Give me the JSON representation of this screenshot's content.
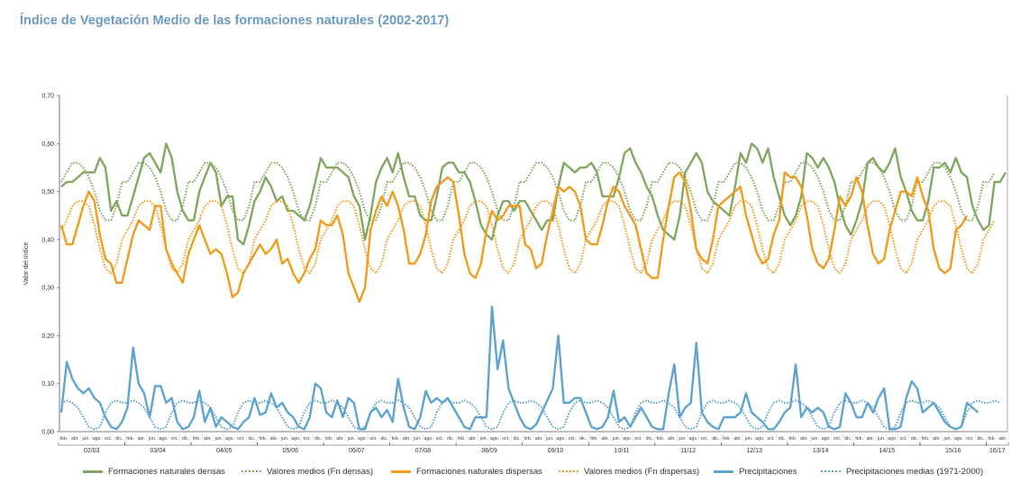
{
  "title": "Índice de Vegetación Medio de las formaciones naturales (2002-2017)",
  "chart_data": {
    "type": "line",
    "ylabel": "Valor del índice",
    "ylim": [
      0,
      0.7
    ],
    "y_ticks": [
      "0,00",
      "0,10",
      "0,20",
      "0,30",
      "0,40",
      "0,50",
      "0,60",
      "0,70"
    ],
    "month_labels": [
      "feb.",
      "abr.",
      "jun.",
      "ago.",
      "oct.",
      "dic."
    ],
    "seasons": [
      "02/03",
      "03/04",
      "04/05",
      "05/06",
      "06/07",
      "07/08",
      "08/09",
      "09/10",
      "10/11",
      "11/12",
      "12/13",
      "13/14",
      "14/15",
      "15/16",
      "16/17"
    ],
    "series": [
      {
        "name": "Formaciones naturales densas",
        "color": "#82a862",
        "style": "solid",
        "values": [
          0.51,
          0.52,
          0.52,
          0.53,
          0.54,
          0.54,
          0.54,
          0.57,
          0.55,
          0.46,
          0.48,
          0.45,
          0.45,
          0.49,
          0.53,
          0.57,
          0.58,
          0.56,
          0.54,
          0.6,
          0.57,
          0.5,
          0.46,
          0.44,
          0.44,
          0.5,
          0.53,
          0.56,
          0.54,
          0.47,
          0.49,
          0.49,
          0.4,
          0.39,
          0.43,
          0.48,
          0.5,
          0.53,
          0.51,
          0.48,
          0.49,
          0.46,
          0.46,
          0.45,
          0.44,
          0.47,
          0.52,
          0.57,
          0.55,
          0.55,
          0.55,
          0.54,
          0.53,
          0.49,
          0.47,
          0.4,
          0.45,
          0.52,
          0.55,
          0.57,
          0.54,
          0.58,
          0.53,
          0.49,
          0.49,
          0.45,
          0.44,
          0.44,
          0.49,
          0.55,
          0.56,
          0.56,
          0.54,
          0.54,
          0.52,
          0.48,
          0.43,
          0.41,
          0.4,
          0.45,
          0.48,
          0.48,
          0.46,
          0.48,
          0.48,
          0.46,
          0.44,
          0.42,
          0.44,
          0.44,
          0.51,
          0.56,
          0.55,
          0.54,
          0.55,
          0.55,
          0.56,
          0.54,
          0.49,
          0.49,
          0.49,
          0.53,
          0.58,
          0.59,
          0.56,
          0.54,
          0.51,
          0.49,
          0.45,
          0.42,
          0.41,
          0.4,
          0.45,
          0.54,
          0.56,
          0.58,
          0.56,
          0.5,
          0.48,
          0.47,
          0.46,
          0.45,
          0.51,
          0.58,
          0.56,
          0.6,
          0.59,
          0.56,
          0.59,
          0.53,
          0.49,
          0.45,
          0.43,
          0.45,
          0.49,
          0.58,
          0.57,
          0.55,
          0.57,
          0.55,
          0.52,
          0.47,
          0.43,
          0.41,
          0.44,
          0.48,
          0.56,
          0.57,
          0.55,
          0.54,
          0.56,
          0.59,
          0.53,
          0.5,
          0.46,
          0.44,
          0.44,
          0.48,
          0.55,
          0.55,
          0.56,
          0.54,
          0.57,
          0.54,
          0.53,
          0.47,
          0.44,
          0.42,
          0.43,
          0.52,
          0.52,
          0.54
        ]
      },
      {
        "name": "Valores medios (Fn densas)",
        "color": "#82a862",
        "style": "dotted",
        "values": [
          0.52,
          0.54,
          0.56,
          0.56,
          0.55,
          0.53,
          0.5,
          0.46,
          0.44,
          0.44,
          0.47,
          0.52,
          0.52,
          0.54,
          0.56,
          0.56,
          0.55,
          0.53,
          0.5,
          0.46,
          0.44,
          0.44,
          0.47,
          0.52,
          0.52,
          0.54,
          0.56,
          0.56,
          0.55,
          0.53,
          0.5,
          0.46,
          0.44,
          0.44,
          0.47,
          0.52,
          0.52,
          0.54,
          0.56,
          0.56,
          0.55,
          0.53,
          0.5,
          0.46,
          0.44,
          0.44,
          0.47,
          0.52,
          0.52,
          0.54,
          0.56,
          0.56,
          0.55,
          0.53,
          0.5,
          0.46,
          0.44,
          0.44,
          0.47,
          0.52,
          0.52,
          0.54,
          0.56,
          0.56,
          0.55,
          0.53,
          0.5,
          0.46,
          0.44,
          0.44,
          0.47,
          0.52,
          0.52,
          0.54,
          0.56,
          0.56,
          0.55,
          0.53,
          0.5,
          0.46,
          0.44,
          0.44,
          0.47,
          0.52,
          0.52,
          0.54,
          0.56,
          0.56,
          0.55,
          0.53,
          0.5,
          0.46,
          0.44,
          0.44,
          0.47,
          0.52,
          0.52,
          0.54,
          0.56,
          0.56,
          0.55,
          0.53,
          0.5,
          0.46,
          0.44,
          0.44,
          0.47,
          0.52,
          0.52,
          0.54,
          0.56,
          0.56,
          0.55,
          0.53,
          0.5,
          0.46,
          0.44,
          0.44,
          0.47,
          0.52,
          0.52,
          0.54,
          0.56,
          0.56,
          0.55,
          0.53,
          0.5,
          0.46,
          0.44,
          0.44,
          0.47,
          0.52,
          0.52,
          0.54,
          0.56,
          0.56,
          0.55,
          0.53,
          0.5,
          0.46,
          0.44,
          0.44,
          0.47,
          0.52,
          0.52,
          0.54,
          0.56,
          0.56,
          0.55,
          0.53,
          0.5,
          0.46,
          0.44,
          0.44,
          0.47,
          0.52,
          0.52,
          0.54,
          0.56,
          0.56,
          0.55,
          0.53,
          0.5,
          0.46,
          0.44,
          0.44,
          0.47,
          0.52,
          0.52,
          0.54
        ]
      },
      {
        "name": "Formaciones naturales dispersas",
        "color": "#f29c1f",
        "style": "solid",
        "values": [
          0.43,
          0.39,
          0.39,
          0.43,
          0.47,
          0.5,
          0.48,
          0.41,
          0.36,
          0.35,
          0.31,
          0.31,
          0.36,
          0.41,
          0.44,
          0.43,
          0.42,
          0.47,
          0.47,
          0.38,
          0.35,
          0.33,
          0.31,
          0.37,
          0.4,
          0.43,
          0.4,
          0.37,
          0.38,
          0.37,
          0.33,
          0.28,
          0.29,
          0.33,
          0.35,
          0.37,
          0.39,
          0.37,
          0.38,
          0.4,
          0.35,
          0.36,
          0.33,
          0.31,
          0.33,
          0.36,
          0.38,
          0.44,
          0.43,
          0.43,
          0.45,
          0.41,
          0.33,
          0.3,
          0.27,
          0.3,
          0.42,
          0.46,
          0.49,
          0.47,
          0.5,
          0.47,
          0.42,
          0.35,
          0.35,
          0.37,
          0.41,
          0.48,
          0.51,
          0.52,
          0.53,
          0.52,
          0.45,
          0.37,
          0.33,
          0.32,
          0.35,
          0.42,
          0.46,
          0.44,
          0.45,
          0.47,
          0.47,
          0.47,
          0.39,
          0.38,
          0.34,
          0.35,
          0.41,
          0.46,
          0.51,
          0.5,
          0.51,
          0.5,
          0.47,
          0.4,
          0.39,
          0.39,
          0.43,
          0.48,
          0.51,
          0.5,
          0.47,
          0.45,
          0.43,
          0.38,
          0.33,
          0.32,
          0.32,
          0.4,
          0.47,
          0.53,
          0.54,
          0.52,
          0.46,
          0.38,
          0.36,
          0.35,
          0.4,
          0.47,
          0.48,
          0.49,
          0.5,
          0.51,
          0.45,
          0.41,
          0.37,
          0.35,
          0.36,
          0.41,
          0.44,
          0.54,
          0.53,
          0.53,
          0.51,
          0.45,
          0.38,
          0.35,
          0.34,
          0.36,
          0.42,
          0.49,
          0.47,
          0.49,
          0.53,
          0.5,
          0.43,
          0.37,
          0.35,
          0.36,
          0.42,
          0.46,
          0.5,
          0.5,
          0.49,
          0.53,
          0.49,
          0.46,
          0.38,
          0.34,
          0.33,
          0.34,
          0.42,
          0.43,
          0.45
        ]
      },
      {
        "name": "Valores medios (Fn dispersas)",
        "color": "#f29c1f",
        "style": "dotted",
        "values": [
          0.42,
          0.44,
          0.47,
          0.48,
          0.48,
          0.47,
          0.43,
          0.38,
          0.34,
          0.33,
          0.35,
          0.4,
          0.42,
          0.44,
          0.47,
          0.48,
          0.48,
          0.47,
          0.43,
          0.38,
          0.34,
          0.33,
          0.35,
          0.4,
          0.42,
          0.44,
          0.47,
          0.48,
          0.48,
          0.47,
          0.43,
          0.38,
          0.34,
          0.33,
          0.35,
          0.4,
          0.42,
          0.44,
          0.47,
          0.48,
          0.48,
          0.47,
          0.43,
          0.38,
          0.34,
          0.33,
          0.35,
          0.4,
          0.42,
          0.44,
          0.47,
          0.48,
          0.48,
          0.47,
          0.43,
          0.38,
          0.34,
          0.33,
          0.35,
          0.4,
          0.42,
          0.44,
          0.47,
          0.48,
          0.48,
          0.47,
          0.43,
          0.38,
          0.34,
          0.33,
          0.35,
          0.4,
          0.42,
          0.44,
          0.47,
          0.48,
          0.48,
          0.47,
          0.43,
          0.38,
          0.34,
          0.33,
          0.35,
          0.4,
          0.42,
          0.44,
          0.47,
          0.48,
          0.48,
          0.47,
          0.43,
          0.38,
          0.34,
          0.33,
          0.35,
          0.4,
          0.42,
          0.44,
          0.47,
          0.48,
          0.48,
          0.47,
          0.43,
          0.38,
          0.34,
          0.33,
          0.35,
          0.4,
          0.42,
          0.44,
          0.47,
          0.48,
          0.48,
          0.47,
          0.43,
          0.38,
          0.34,
          0.33,
          0.35,
          0.4,
          0.42,
          0.44,
          0.47,
          0.48,
          0.48,
          0.47,
          0.43,
          0.38,
          0.34,
          0.33,
          0.35,
          0.4,
          0.42,
          0.44,
          0.47,
          0.48,
          0.48,
          0.47,
          0.43,
          0.38,
          0.34,
          0.33,
          0.35,
          0.4,
          0.42,
          0.44,
          0.47,
          0.48,
          0.48,
          0.47,
          0.43,
          0.38,
          0.34,
          0.33,
          0.35,
          0.4,
          0.42,
          0.44,
          0.47,
          0.48,
          0.48,
          0.47,
          0.43,
          0.38,
          0.34,
          0.33,
          0.35,
          0.4,
          0.42,
          0.44
        ]
      },
      {
        "name": "Precipitaciones",
        "color": "#5ea4ce",
        "style": "solid",
        "values": [
          0.04,
          0.145,
          0.11,
          0.09,
          0.08,
          0.09,
          0.07,
          0.06,
          0.03,
          0.01,
          0.005,
          0.02,
          0.05,
          0.175,
          0.1,
          0.08,
          0.03,
          0.095,
          0.095,
          0.06,
          0.07,
          0.02,
          0.005,
          0.01,
          0.03,
          0.085,
          0.02,
          0.05,
          0.01,
          0.03,
          0.02,
          0.01,
          0.005,
          0.02,
          0.03,
          0.07,
          0.035,
          0.04,
          0.08,
          0.05,
          0.06,
          0.04,
          0.03,
          0.01,
          0.005,
          0.03,
          0.1,
          0.09,
          0.04,
          0.03,
          0.065,
          0.03,
          0.07,
          0.06,
          0.005,
          0.005,
          0.04,
          0.05,
          0.03,
          0.045,
          0.02,
          0.11,
          0.05,
          0.01,
          0.005,
          0.03,
          0.085,
          0.06,
          0.07,
          0.06,
          0.07,
          0.05,
          0.03,
          0.01,
          0.005,
          0.03,
          0.03,
          0.03,
          0.26,
          0.13,
          0.19,
          0.09,
          0.06,
          0.03,
          0.01,
          0.005,
          0.015,
          0.04,
          0.065,
          0.09,
          0.2,
          0.06,
          0.06,
          0.07,
          0.07,
          0.04,
          0.01,
          0.005,
          0.01,
          0.03,
          0.085,
          0.02,
          0.03,
          0.01,
          0.03,
          0.05,
          0.03,
          0.01,
          0.005,
          0.005,
          0.08,
          0.14,
          0.03,
          0.05,
          0.06,
          0.185,
          0.04,
          0.02,
          0.01,
          0.005,
          0.03,
          0.03,
          0.03,
          0.04,
          0.08,
          0.04,
          0.03,
          0.02,
          0.005,
          0.005,
          0.02,
          0.04,
          0.05,
          0.14,
          0.03,
          0.05,
          0.04,
          0.05,
          0.04,
          0.01,
          0.005,
          0.01,
          0.08,
          0.06,
          0.03,
          0.03,
          0.06,
          0.04,
          0.07,
          0.09,
          0.005,
          0.005,
          0.01,
          0.07,
          0.105,
          0.09,
          0.04,
          0.05,
          0.06,
          0.04,
          0.02,
          0.01,
          0.005,
          0.01,
          0.06,
          0.05,
          0.04
        ]
      },
      {
        "name": "Precipitaciones medias (1971-2000)",
        "color": "#5ea4ce",
        "style": "dotted",
        "values": [
          0.06,
          0.065,
          0.06,
          0.05,
          0.03,
          0.01,
          0.005,
          0.01,
          0.04,
          0.06,
          0.065,
          0.06,
          0.06,
          0.065,
          0.06,
          0.05,
          0.03,
          0.01,
          0.005,
          0.01,
          0.04,
          0.06,
          0.065,
          0.06,
          0.06,
          0.065,
          0.06,
          0.05,
          0.03,
          0.01,
          0.005,
          0.01,
          0.04,
          0.06,
          0.065,
          0.06,
          0.06,
          0.065,
          0.06,
          0.05,
          0.03,
          0.01,
          0.005,
          0.01,
          0.04,
          0.06,
          0.065,
          0.06,
          0.06,
          0.065,
          0.06,
          0.05,
          0.03,
          0.01,
          0.005,
          0.01,
          0.04,
          0.06,
          0.065,
          0.06,
          0.06,
          0.065,
          0.06,
          0.05,
          0.03,
          0.01,
          0.005,
          0.01,
          0.04,
          0.06,
          0.065,
          0.06,
          0.06,
          0.065,
          0.06,
          0.05,
          0.03,
          0.01,
          0.005,
          0.01,
          0.04,
          0.06,
          0.065,
          0.06,
          0.06,
          0.065,
          0.06,
          0.05,
          0.03,
          0.01,
          0.005,
          0.01,
          0.04,
          0.06,
          0.065,
          0.06,
          0.06,
          0.065,
          0.06,
          0.05,
          0.03,
          0.01,
          0.005,
          0.01,
          0.04,
          0.06,
          0.065,
          0.06,
          0.06,
          0.065,
          0.06,
          0.05,
          0.03,
          0.01,
          0.005,
          0.01,
          0.04,
          0.06,
          0.065,
          0.06,
          0.06,
          0.065,
          0.06,
          0.05,
          0.03,
          0.01,
          0.005,
          0.01,
          0.04,
          0.06,
          0.065,
          0.06,
          0.06,
          0.065,
          0.06,
          0.05,
          0.03,
          0.01,
          0.005,
          0.01,
          0.04,
          0.06,
          0.065,
          0.06,
          0.06,
          0.065,
          0.06,
          0.05,
          0.03,
          0.01,
          0.005,
          0.01,
          0.04,
          0.06,
          0.065,
          0.06,
          0.06,
          0.065,
          0.06,
          0.05,
          0.03,
          0.01,
          0.005,
          0.01,
          0.04,
          0.06,
          0.065,
          0.06,
          0.06,
          0.065,
          0.06
        ]
      }
    ]
  }
}
